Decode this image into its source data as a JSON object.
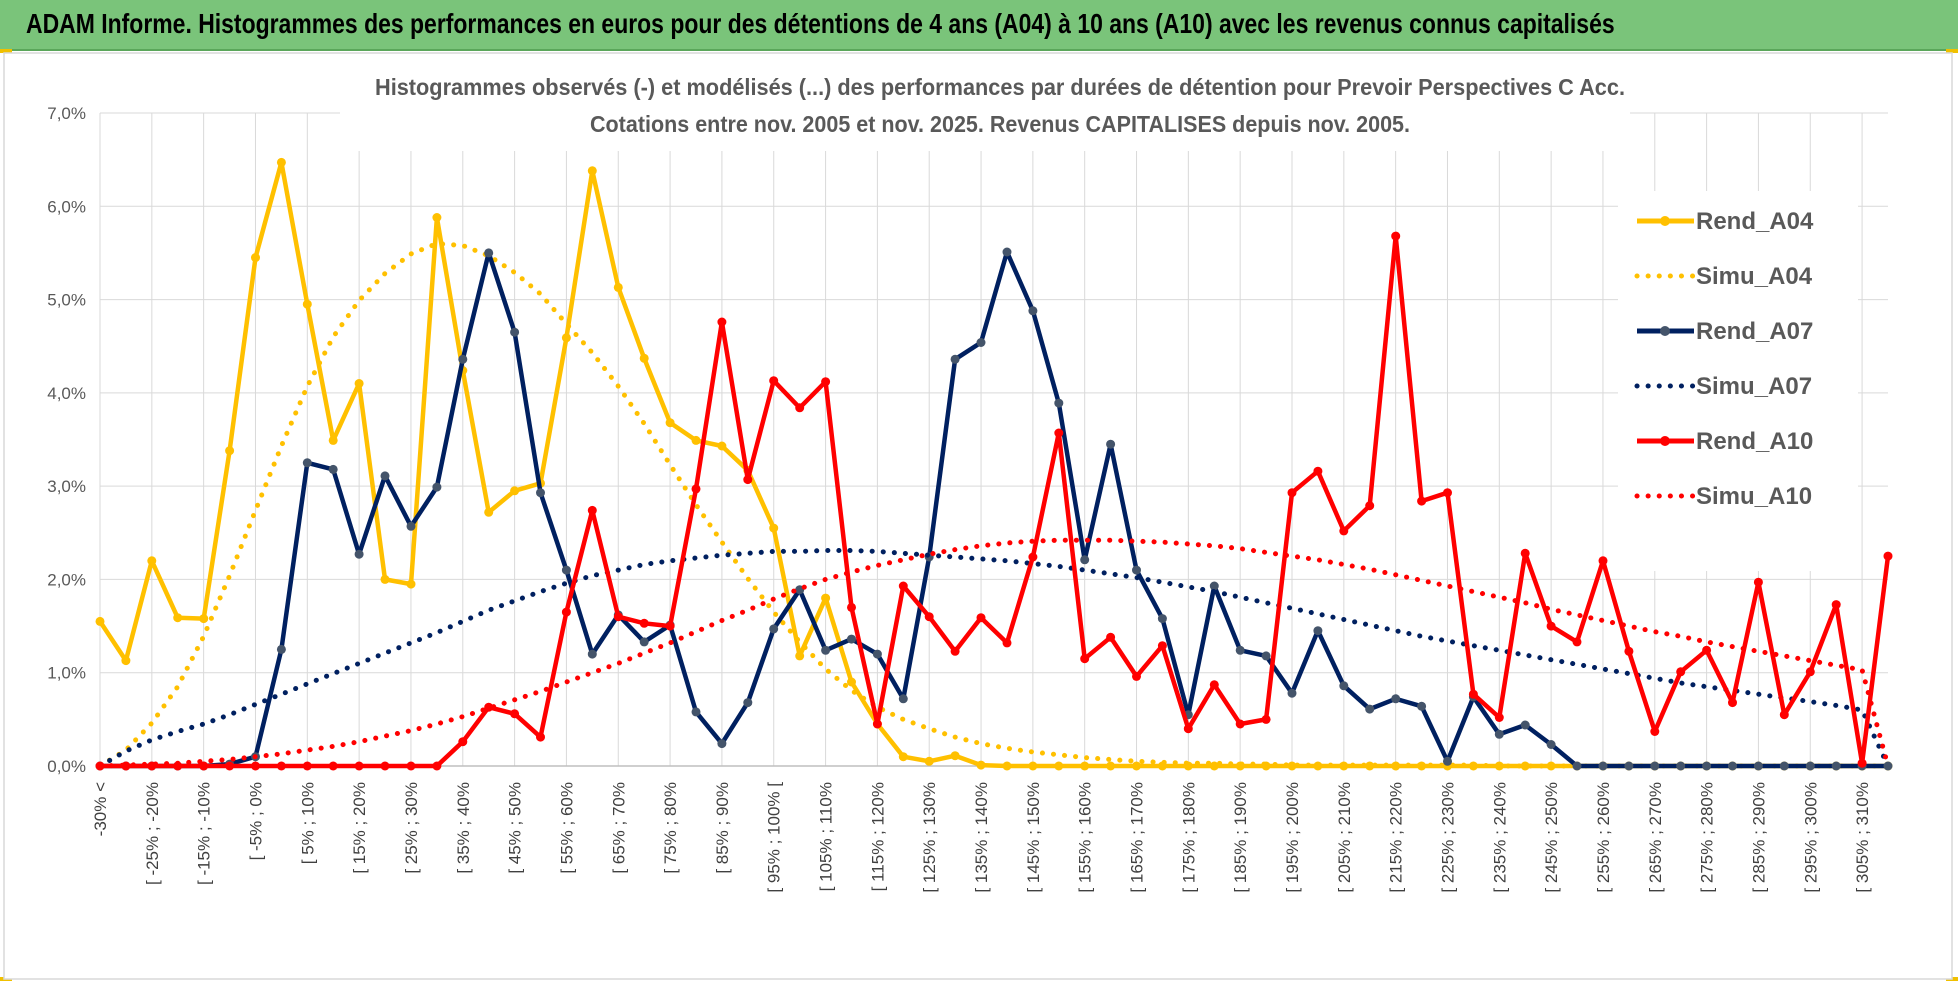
{
  "header": {
    "title": "ADAM Informe. Histogrammes des performances en euros pour des détentions de 4 ans (A04) à 10 ans (A10) avec les revenus connus capitalisés"
  },
  "colors": {
    "banner": "#7ac47a",
    "grid": "#d9d9d9",
    "series": [
      "#ffc000",
      "#ffc000",
      "#002060",
      "#002060",
      "#ff0000",
      "#ff0000"
    ]
  },
  "chart_data": {
    "type": "line",
    "title": [
      "Histogrammes observés (-) et modélisés (...) des performances par durées de détention pour Prevoir Perspectives C Acc.",
      "Cotations entre nov. 2005 et nov. 2025. Revenus CAPITALISES depuis nov. 2005."
    ],
    "xlabel": "",
    "ylabel": "",
    "ylim": [
      0,
      7
    ],
    "y_ticks": [
      "0,0%",
      "1,0%",
      "2,0%",
      "3,0%",
      "4,0%",
      "5,0%",
      "6,0%",
      "7,0%"
    ],
    "grid": true,
    "legend_position": "right",
    "x_tick_labels": [
      "-30% <",
      "[ -25% ; -20%",
      "[ -15% ; -10%",
      "[ -5% ; 0%",
      "[ 5% ; 10%",
      "[ 15% ; 20%",
      "[ 25% ; 30%",
      "[ 35% ; 40%",
      "[ 45% ; 50%",
      "[ 55% ; 60%",
      "[ 65% ; 70%",
      "[ 75% ; 80%",
      "[ 85% ; 90%",
      "[ 95% ; 100% [",
      "[ 105% ; 110%",
      "[ 115% ; 120%",
      "[ 125% ; 130%",
      "[ 135% ; 140%",
      "[ 145% ; 150%",
      "[ 155% ; 160%",
      "[ 165% ; 170%",
      "[ 175% ; 180%",
      "[ 185% ; 190%",
      "[ 195% ; 200%",
      "[ 205% ; 210%",
      "[ 215% ; 220%",
      "[ 225% ; 230%",
      "[ 235% ; 240%",
      "[ 245% ; 250%",
      "[ 255% ; 260%",
      "[ 265% ; 270%",
      "[ 275% ; 280%",
      "[ 285% ; 290%",
      "[ 295% ; 300%",
      "[ 305% ; 310%"
    ],
    "x_label_step": 2,
    "series": [
      {
        "name": "Rend_A04",
        "style": "solid",
        "values": [
          1.55,
          1.13,
          2.2,
          1.59,
          1.58,
          3.38,
          5.45,
          6.47,
          4.95,
          3.49,
          4.1,
          2.0,
          1.95,
          5.88,
          4.24,
          2.72,
          2.95,
          3.03,
          4.59,
          6.38,
          5.13,
          4.37,
          3.68,
          3.49,
          3.43,
          3.17,
          2.55,
          1.18,
          1.8,
          0.9,
          0.45,
          0.1,
          0.05,
          0.11,
          0.01,
          0,
          0,
          0,
          0,
          0,
          0,
          0,
          0,
          0,
          0,
          0,
          0,
          0,
          0,
          0,
          0,
          0,
          0,
          0,
          0,
          0,
          0,
          0,
          0,
          0,
          0,
          0,
          0,
          0,
          0,
          0,
          0,
          0,
          0,
          0
        ]
      },
      {
        "name": "Simu_A04",
        "style": "dotted",
        "values": [
          0.0,
          0.17,
          0.46,
          0.85,
          1.39,
          2.04,
          2.74,
          3.43,
          4.07,
          4.6,
          4.99,
          5.28,
          5.49,
          5.6,
          5.58,
          5.47,
          5.29,
          5.06,
          4.74,
          4.43,
          4.07,
          3.67,
          3.23,
          2.8,
          2.4,
          2.01,
          1.65,
          1.33,
          1.04,
          0.81,
          0.63,
          0.5,
          0.4,
          0.31,
          0.24,
          0.19,
          0.15,
          0.12,
          0.09,
          0.07,
          0.05,
          0.04,
          0.03,
          0.03,
          0.02,
          0.02,
          0.01,
          0.01,
          0.01,
          0.01,
          0.01,
          0.01,
          0.01,
          0.01,
          0,
          0,
          0,
          0,
          0,
          0,
          0,
          0,
          0,
          0,
          0,
          0,
          0,
          0,
          0,
          0
        ]
      },
      {
        "name": "Rend_A07",
        "style": "solid",
        "values": [
          0,
          0,
          0,
          0,
          0,
          0.02,
          0.1,
          1.25,
          3.25,
          3.18,
          2.27,
          3.11,
          2.57,
          2.99,
          4.36,
          5.5,
          4.65,
          2.93,
          2.1,
          1.2,
          1.62,
          1.33,
          1.51,
          0.58,
          0.24,
          0.68,
          1.47,
          1.89,
          1.24,
          1.36,
          1.2,
          0.72,
          2.24,
          4.36,
          4.54,
          5.51,
          4.88,
          3.89,
          2.21,
          3.45,
          2.1,
          1.58,
          0.55,
          1.93,
          1.24,
          1.18,
          0.78,
          1.45,
          0.86,
          0.61,
          0.72,
          0.64,
          0.05,
          0.74,
          0.34,
          0.44,
          0.23,
          0,
          0,
          0,
          0,
          0,
          0,
          0,
          0,
          0,
          0,
          0,
          0,
          0
        ]
      },
      {
        "name": "Simu_A07",
        "style": "dotted",
        "values": [
          0.0,
          0.16,
          0.28,
          0.37,
          0.45,
          0.55,
          0.66,
          0.77,
          0.88,
          0.99,
          1.1,
          1.21,
          1.32,
          1.43,
          1.55,
          1.67,
          1.77,
          1.87,
          1.96,
          2.04,
          2.1,
          2.16,
          2.2,
          2.23,
          2.26,
          2.28,
          2.3,
          2.3,
          2.31,
          2.31,
          2.3,
          2.28,
          2.26,
          2.24,
          2.22,
          2.2,
          2.17,
          2.14,
          2.1,
          2.06,
          2.02,
          1.97,
          1.92,
          1.87,
          1.81,
          1.75,
          1.69,
          1.63,
          1.57,
          1.51,
          1.45,
          1.39,
          1.34,
          1.29,
          1.24,
          1.19,
          1.14,
          1.09,
          1.04,
          0.99,
          0.94,
          0.89,
          0.85,
          0.81,
          0.77,
          0.73,
          0.69,
          0.65,
          0.6,
          0.0
        ]
      },
      {
        "name": "Rend_A10",
        "style": "solid",
        "values": [
          0,
          0,
          0,
          0,
          0,
          0,
          0,
          0,
          0,
          0,
          0,
          0,
          0,
          0,
          0.26,
          0.63,
          0.56,
          0.31,
          1.65,
          2.74,
          1.6,
          1.53,
          1.5,
          2.97,
          4.76,
          3.07,
          4.13,
          3.84,
          4.12,
          1.7,
          0.45,
          1.93,
          1.6,
          1.23,
          1.59,
          1.32,
          2.24,
          3.57,
          1.15,
          1.38,
          0.96,
          1.29,
          0.4,
          0.87,
          0.45,
          0.5,
          2.93,
          3.16,
          2.52,
          2.79,
          5.68,
          2.84,
          2.93,
          0.77,
          0.52,
          2.28,
          1.5,
          1.33,
          2.2,
          1.23,
          0.37,
          1.01,
          1.24,
          0.68,
          1.97,
          0.55,
          1.01,
          1.73,
          0.03,
          2.25
        ]
      },
      {
        "name": "Simu_A10",
        "style": "dotted",
        "values": [
          0.0,
          0.01,
          0.02,
          0.03,
          0.05,
          0.07,
          0.1,
          0.13,
          0.17,
          0.21,
          0.26,
          0.32,
          0.38,
          0.45,
          0.53,
          0.62,
          0.71,
          0.8,
          0.9,
          1.0,
          1.1,
          1.21,
          1.32,
          1.44,
          1.56,
          1.67,
          1.79,
          1.9,
          2.0,
          2.08,
          2.15,
          2.21,
          2.27,
          2.32,
          2.36,
          2.39,
          2.41,
          2.42,
          2.42,
          2.42,
          2.41,
          2.4,
          2.38,
          2.36,
          2.33,
          2.29,
          2.25,
          2.21,
          2.16,
          2.11,
          2.05,
          1.99,
          1.93,
          1.87,
          1.81,
          1.75,
          1.68,
          1.62,
          1.56,
          1.5,
          1.44,
          1.39,
          1.33,
          1.28,
          1.23,
          1.18,
          1.13,
          1.08,
          1.03,
          0.0
        ]
      }
    ]
  }
}
